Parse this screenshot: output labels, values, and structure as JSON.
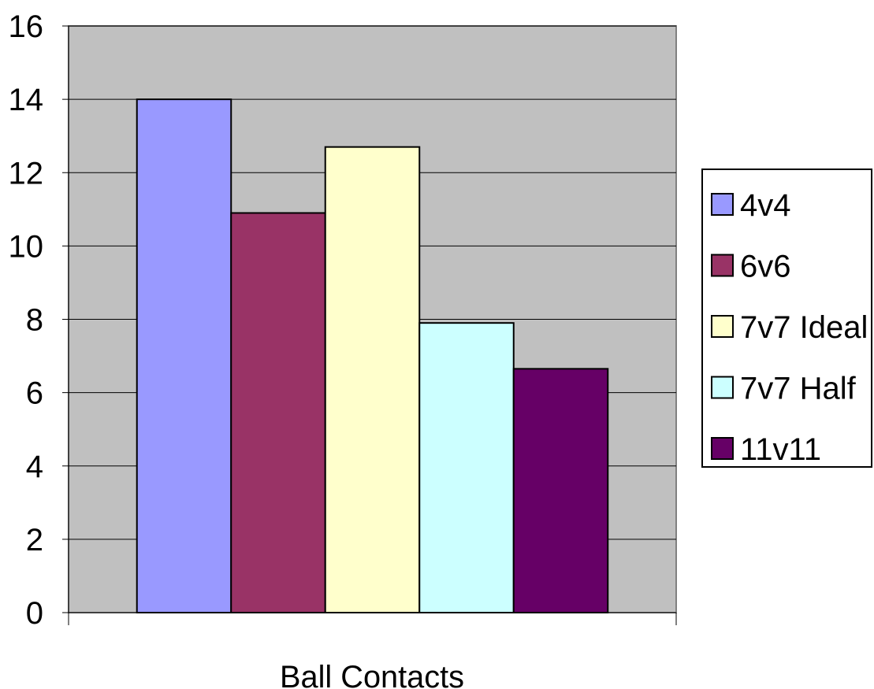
{
  "chart_data": {
    "type": "bar",
    "title": "",
    "xlabel": "",
    "ylabel": "",
    "categories": [
      "Ball Contacts"
    ],
    "series": [
      {
        "name": "4v4",
        "values": [
          14.0
        ],
        "color": "#9999FF"
      },
      {
        "name": "6v6",
        "values": [
          10.9
        ],
        "color": "#993366"
      },
      {
        "name": "7v7 Ideal",
        "values": [
          12.7
        ],
        "color": "#FFFFCC"
      },
      {
        "name": "7v7 Half",
        "values": [
          7.9
        ],
        "color": "#CCFFFF"
      },
      {
        "name": "11v11",
        "values": [
          6.65
        ],
        "color": "#660066"
      }
    ],
    "ylim": [
      0,
      16
    ],
    "yticks": [
      "0",
      "2",
      "4",
      "6",
      "8",
      "10",
      "12",
      "14",
      "16"
    ],
    "grid": true,
    "plot_background": "#C0C0C0",
    "legend_position": "right"
  }
}
